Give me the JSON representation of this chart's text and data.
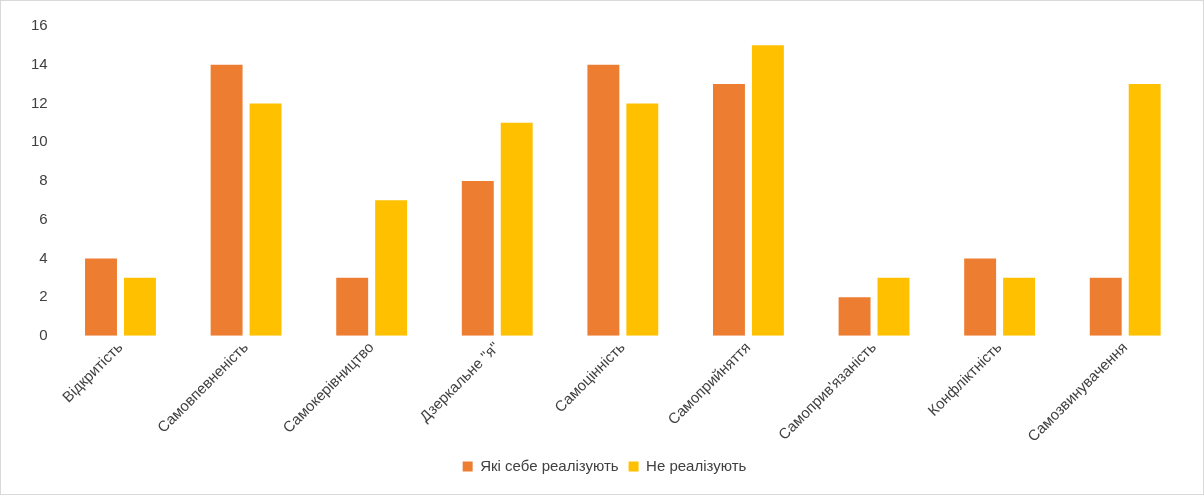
{
  "chart_data": {
    "type": "bar",
    "categories": [
      "Відкритість",
      "Самовпевненість",
      "Самокерівництво",
      "Дзеркальне \"я\"",
      "Самоцінність",
      "Самоприйняття",
      "Самоприв'язаність",
      "Конфліктність",
      "Самозвинувачення"
    ],
    "series": [
      {
        "name": "Які себе реалізують",
        "color": "#ed7d31",
        "values": [
          4,
          14,
          3,
          8,
          14,
          13,
          2,
          4,
          3
        ]
      },
      {
        "name": "Не реалізують",
        "color": "#ffc000",
        "values": [
          3,
          12,
          7,
          11,
          12,
          15,
          3,
          3,
          13
        ]
      }
    ],
    "ylim": [
      0,
      16
    ],
    "yticks": [
      0,
      2,
      4,
      6,
      8,
      10,
      12,
      14,
      16
    ],
    "grid": false,
    "legend": "bottom"
  }
}
